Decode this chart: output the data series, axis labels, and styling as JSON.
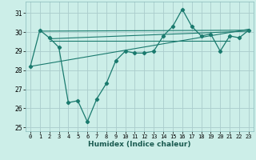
{
  "title": "",
  "xlabel": "Humidex (Indice chaleur)",
  "bg_color": "#cceee8",
  "grid_color": "#aacccc",
  "line_color": "#1a7a6e",
  "xlim": [
    -0.5,
    23.5
  ],
  "ylim": [
    24.8,
    31.6
  ],
  "yticks": [
    25,
    26,
    27,
    28,
    29,
    30,
    31
  ],
  "xticks": [
    0,
    1,
    2,
    3,
    4,
    5,
    6,
    7,
    8,
    9,
    10,
    11,
    12,
    13,
    14,
    15,
    16,
    17,
    18,
    19,
    20,
    21,
    22,
    23
  ],
  "main_y": [
    28.2,
    30.1,
    29.7,
    29.2,
    26.3,
    26.4,
    25.3,
    26.5,
    27.3,
    28.5,
    29.0,
    28.9,
    28.9,
    29.0,
    29.8,
    30.3,
    31.2,
    30.3,
    29.8,
    29.9,
    29.0,
    29.8,
    29.7,
    30.1
  ],
  "trend1_x": [
    0,
    23
  ],
  "trend1_y": [
    28.2,
    30.15
  ],
  "trend2_x": [
    1,
    23
  ],
  "trend2_y": [
    30.05,
    30.1
  ],
  "trend3_x": [
    2,
    23
  ],
  "trend3_y": [
    29.65,
    30.05
  ],
  "trend4_x": [
    2,
    21
  ],
  "trend4_y": [
    29.55,
    29.55
  ]
}
